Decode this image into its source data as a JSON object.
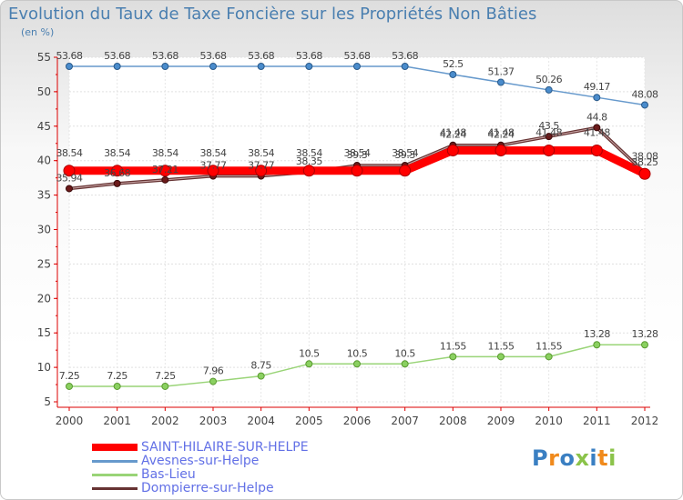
{
  "chart_data": {
    "type": "line",
    "title": "Evolution du Taux de Taxe Foncière sur les Propriétés Non Bâties",
    "subtitle": "(en %)",
    "x": [
      "2000",
      "2001",
      "2002",
      "2003",
      "2004",
      "2005",
      "2006",
      "2007",
      "2008",
      "2009",
      "2010",
      "2011",
      "2012"
    ],
    "ylim": [
      5,
      55
    ],
    "yticks": [
      5,
      10,
      15,
      20,
      25,
      30,
      35,
      40,
      45,
      50,
      55
    ],
    "series": [
      {
        "name": "SAINT-HILAIRE-SUR-HELPE",
        "color": "#ff0000",
        "values": [
          38.54,
          38.54,
          38.54,
          38.54,
          38.54,
          38.54,
          38.54,
          38.54,
          41.48,
          41.48,
          41.48,
          41.48,
          38.08
        ],
        "labels": [
          "38.54",
          "38.54",
          "38.54",
          "38.54",
          "38.54",
          "38.54",
          "38.54",
          "38.54",
          "41.48",
          "41.48",
          "41.48",
          "41.48",
          "38.08"
        ]
      },
      {
        "name": "Avesnes-sur-Helpe",
        "color": "#6699cc",
        "values": [
          53.68,
          53.68,
          53.68,
          53.68,
          53.68,
          53.68,
          53.68,
          53.68,
          52.5,
          51.37,
          50.26,
          49.17,
          48.08
        ],
        "labels": [
          "53.68",
          "53.68",
          "53.68",
          "53.68",
          "53.68",
          "53.68",
          "53.68",
          "53.68",
          "52.5",
          "51.37",
          "50.26",
          "49.17",
          "48.08"
        ]
      },
      {
        "name": "Bas-Lieu",
        "color": "#99d477",
        "values": [
          7.25,
          7.25,
          7.25,
          7.96,
          8.75,
          10.5,
          10.5,
          10.5,
          11.55,
          11.55,
          11.55,
          13.28,
          13.28
        ],
        "labels": [
          "7.25",
          "7.25",
          "7.25",
          "7.96",
          "8.75",
          "10.5",
          "10.5",
          "10.5",
          "11.55",
          "11.55",
          "11.55",
          "13.28",
          "13.28"
        ]
      },
      {
        "name": "Dompierre-sur-Helpe",
        "color": "#663333",
        "values": [
          35.94,
          36.68,
          37.21,
          37.77,
          37.77,
          38.35,
          39.3,
          39.3,
          42.24,
          42.24,
          43.5,
          44.8,
          38.25
        ],
        "labels": [
          "35.94",
          "36.68",
          "37.21",
          "37.77",
          "37.77",
          "38.35",
          "39.3",
          "39.3",
          "42.24",
          "42.24",
          "43.5",
          "44.8",
          "38.25"
        ]
      }
    ]
  },
  "logo": {
    "text": "Proxiti"
  }
}
